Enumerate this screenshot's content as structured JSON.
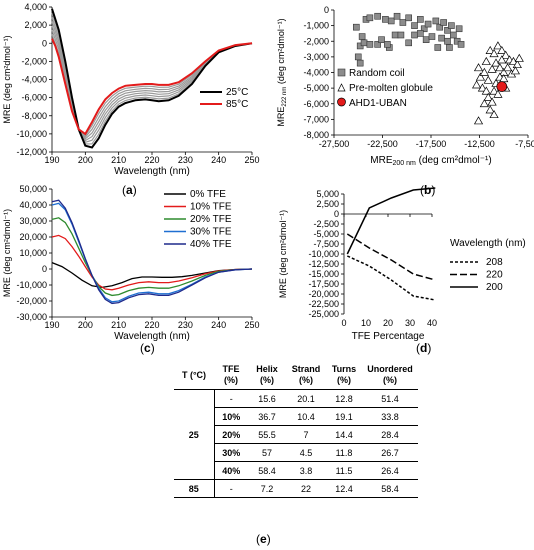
{
  "panels": {
    "a": {
      "letter": "a"
    },
    "b": {
      "letter": "b"
    },
    "c": {
      "letter": "c"
    },
    "d": {
      "letter": "d"
    },
    "e": {
      "letter": "e"
    }
  },
  "colors": {
    "black": "#000000",
    "red": "#e31b1b",
    "green": "#2e8b2e",
    "blue": "#1f6fd1",
    "navy": "#1f2a8c",
    "gray": "#9a9a9a"
  },
  "chart_data": [
    {
      "id": "a",
      "type": "line",
      "xlabel": "Wavelength (nm)",
      "ylabel": "MRE (deg cm²dmol⁻¹)",
      "xlim": [
        190,
        250
      ],
      "ylim": [
        -12000,
        4000
      ],
      "xticks": [
        190,
        200,
        210,
        220,
        230,
        240,
        250
      ],
      "xtick_labels": [
        "190",
        "200",
        "210",
        "220",
        "230",
        "240",
        "250"
      ],
      "yticks": [
        4000,
        2000,
        0,
        -2000,
        -4000,
        -6000,
        -8000,
        -10000,
        -12000
      ],
      "ytick_labels": [
        "4,000",
        "2,000",
        "0",
        "-2,000",
        "-4,000",
        "-6,000",
        "-8,000",
        "-10,000",
        "-12,000"
      ],
      "legend": "right",
      "series": [
        {
          "name": "25°C",
          "color": "#000000",
          "x": [
            190,
            192,
            194,
            196,
            198,
            200,
            202,
            204,
            206,
            208,
            210,
            212,
            215,
            218,
            220,
            222,
            225,
            228,
            232,
            236,
            240,
            245,
            250
          ],
          "y": [
            3800,
            1500,
            -2000,
            -6000,
            -9500,
            -11300,
            -11500,
            -10500,
            -9000,
            -7800,
            -7000,
            -6600,
            -6300,
            -6200,
            -6300,
            -6400,
            -6300,
            -5800,
            -4500,
            -2500,
            -1000,
            -300,
            0
          ]
        },
        {
          "name": "85°C",
          "color": "#e31b1b",
          "x": [
            190,
            191,
            192,
            194,
            196,
            198,
            200,
            202,
            204,
            206,
            208,
            210,
            212,
            215,
            218,
            220,
            222,
            225,
            228,
            232,
            236,
            240,
            245,
            250
          ],
          "y": [
            500,
            -300,
            -1500,
            -4500,
            -7500,
            -9500,
            -10000,
            -8700,
            -7300,
            -6200,
            -5500,
            -5000,
            -4700,
            -4600,
            -4500,
            -4500,
            -4600,
            -4600,
            -4300,
            -3300,
            -2000,
            -800,
            -200,
            0
          ]
        }
      ]
    },
    {
      "id": "b",
      "type": "scatter",
      "xlabel": "MRE200 nm (deg cm²dmol⁻¹)",
      "ylabel": "MRE222 nm (deg cm²dmol⁻¹)",
      "xlim": [
        -27500,
        -7500
      ],
      "ylim": [
        -8000,
        0
      ],
      "xticks": [
        -27500,
        -22500,
        -17500,
        -12500,
        -7500
      ],
      "xtick_labels": [
        "-27,500",
        "-22,500",
        "-17,500",
        "-12,500",
        "-7,500"
      ],
      "yticks": [
        0,
        -1000,
        -2000,
        -3000,
        -4000,
        -5000,
        -6000,
        -7000,
        -8000
      ],
      "ytick_labels": [
        "0",
        "-1,000",
        "-2,000",
        "-3,000",
        "-4,000",
        "-5,000",
        "-6,000",
        "-7,000",
        "-8,000"
      ],
      "legend": "bottom-left",
      "series": [
        {
          "name": "Random coil",
          "marker": "square",
          "points": [
            [
              -25200,
              -1100
            ],
            [
              -24200,
              -600
            ],
            [
              -23800,
              -500
            ],
            [
              -23000,
              -400
            ],
            [
              -22200,
              -600
            ],
            [
              -21600,
              -700
            ],
            [
              -21000,
              -400
            ],
            [
              -20400,
              -800
            ],
            [
              -19800,
              -500
            ],
            [
              -19200,
              -1000
            ],
            [
              -18600,
              -600
            ],
            [
              -18200,
              -1200
            ],
            [
              -17800,
              -900
            ],
            [
              -17000,
              -700
            ],
            [
              -16600,
              -1100
            ],
            [
              -16200,
              -800
            ],
            [
              -15800,
              -1300
            ],
            [
              -15400,
              -1000
            ],
            [
              -15200,
              -1600
            ],
            [
              -14800,
              -2000
            ],
            [
              -14600,
              -1200
            ],
            [
              -14400,
              -2200
            ],
            [
              -24800,
              -2300
            ],
            [
              -24600,
              -1700
            ],
            [
              -24400,
              -2100
            ],
            [
              -23800,
              -2200
            ],
            [
              -23000,
              -2200
            ],
            [
              -22600,
              -1900
            ],
            [
              -21800,
              -2400
            ],
            [
              -21200,
              -1600
            ],
            [
              -20600,
              -1600
            ],
            [
              -19800,
              -2100
            ],
            [
              -19200,
              -1600
            ],
            [
              -18600,
              -1500
            ],
            [
              -18000,
              -1900
            ],
            [
              -17400,
              -1700
            ],
            [
              -16800,
              -2400
            ],
            [
              -16400,
              -1800
            ],
            [
              -15800,
              -2000
            ],
            [
              -15600,
              -2400
            ],
            [
              -25000,
              -3000
            ],
            [
              -24800,
              -3400
            ],
            [
              -22000,
              -2200
            ]
          ]
        },
        {
          "name": "Pre-molten globule",
          "marker": "triangle",
          "points": [
            [
              -11800,
              -3300
            ],
            [
              -11400,
              -2600
            ],
            [
              -11000,
              -2800
            ],
            [
              -10600,
              -2300
            ],
            [
              -10200,
              -2600
            ],
            [
              -9800,
              -2900
            ],
            [
              -9400,
              -3200
            ],
            [
              -9000,
              -3300
            ],
            [
              -8600,
              -3500
            ],
            [
              -8400,
              -3100
            ],
            [
              -12600,
              -3700
            ],
            [
              -12400,
              -4300
            ],
            [
              -12000,
              -4000
            ],
            [
              -11600,
              -4500
            ],
            [
              -11200,
              -3800
            ],
            [
              -10800,
              -3400
            ],
            [
              -10400,
              -3700
            ],
            [
              -10000,
              -4000
            ],
            [
              -9600,
              -3700
            ],
            [
              -9200,
              -4100
            ],
            [
              -8800,
              -3900
            ],
            [
              -12200,
              -5000
            ],
            [
              -11800,
              -5200
            ],
            [
              -11600,
              -5600
            ],
            [
              -11200,
              -5900
            ],
            [
              -11000,
              -5200
            ],
            [
              -10800,
              -4700
            ],
            [
              -10400,
              -4300
            ],
            [
              -10000,
              -4400
            ],
            [
              -10600,
              -5400
            ],
            [
              -12000,
              -6000
            ],
            [
              -11400,
              -6400
            ],
            [
              -11000,
              -6700
            ],
            [
              -12600,
              -7100
            ],
            [
              -12800,
              -4800
            ],
            [
              -9800,
              -5000
            ],
            [
              -10200,
              -3200
            ]
          ]
        },
        {
          "name": "AHD1-UBAN",
          "marker": "circle",
          "color": "#e31b1b",
          "points": [
            [
              -10200,
              -4900
            ]
          ]
        }
      ]
    },
    {
      "id": "c",
      "type": "line",
      "xlabel": "Wavelength (nm)",
      "ylabel": "MRE (deg cm²dmol⁻¹)",
      "xlim": [
        190,
        250
      ],
      "ylim": [
        -30000,
        50000
      ],
      "xticks": [
        190,
        200,
        210,
        220,
        230,
        240,
        250
      ],
      "xtick_labels": [
        "190",
        "200",
        "210",
        "220",
        "230",
        "240",
        "250"
      ],
      "yticks": [
        50000,
        40000,
        30000,
        20000,
        10000,
        0,
        -10000,
        -20000,
        -30000
      ],
      "ytick_labels": [
        "50,000",
        "40,000",
        "30,000",
        "20,000",
        "10,000",
        "0",
        "-10,000",
        "-20,000",
        "-30,000"
      ],
      "legend": "right",
      "series": [
        {
          "name": "0% TFE",
          "color": "#000000",
          "x": [
            190,
            193,
            196,
            199,
            202,
            205,
            208,
            211,
            214,
            217,
            220,
            223,
            226,
            229,
            232,
            236,
            240,
            245,
            250
          ],
          "y": [
            4000,
            1500,
            -2500,
            -7000,
            -10500,
            -11500,
            -10500,
            -8500,
            -6000,
            -5000,
            -5000,
            -5200,
            -5200,
            -4800,
            -4000,
            -2500,
            -1000,
            -300,
            0
          ]
        },
        {
          "name": "10% TFE",
          "color": "#e31b1b",
          "x": [
            190,
            192,
            194,
            196,
            198,
            200,
            202,
            204,
            206,
            208,
            210,
            213,
            216,
            219,
            222,
            225,
            228,
            232,
            236,
            240,
            245,
            250
          ],
          "y": [
            20000,
            21000,
            19000,
            14000,
            8000,
            1500,
            -5000,
            -10000,
            -12500,
            -13000,
            -12000,
            -10000,
            -8500,
            -8000,
            -8500,
            -8500,
            -7500,
            -5500,
            -3000,
            -1200,
            -300,
            0
          ]
        },
        {
          "name": "20% TFE",
          "color": "#2e8b2e",
          "x": [
            190,
            192,
            194,
            196,
            198,
            200,
            202,
            204,
            206,
            208,
            210,
            213,
            216,
            219,
            222,
            225,
            228,
            232,
            236,
            240,
            245,
            250
          ],
          "y": [
            31000,
            32000,
            29000,
            22000,
            13000,
            4000,
            -4000,
            -11000,
            -15000,
            -16500,
            -16000,
            -13500,
            -12000,
            -11500,
            -12000,
            -12000,
            -10500,
            -7500,
            -4000,
            -1500,
            -400,
            0
          ]
        },
        {
          "name": "30% TFE",
          "color": "#1f6fd1",
          "x": [
            190,
            192,
            194,
            196,
            198,
            200,
            202,
            204,
            206,
            208,
            210,
            213,
            216,
            219,
            222,
            225,
            228,
            232,
            236,
            240,
            245,
            250
          ],
          "y": [
            40000,
            41000,
            37000,
            28000,
            17000,
            6000,
            -4000,
            -12000,
            -18000,
            -20500,
            -20000,
            -17000,
            -15000,
            -14500,
            -15500,
            -15500,
            -13500,
            -9500,
            -5000,
            -2000,
            -500,
            0
          ]
        },
        {
          "name": "40% TFE",
          "color": "#1f2a8c",
          "x": [
            190,
            192,
            194,
            196,
            198,
            200,
            202,
            204,
            206,
            208,
            210,
            213,
            216,
            219,
            222,
            225,
            228,
            232,
            236,
            240,
            245,
            250
          ],
          "y": [
            42000,
            43000,
            38000,
            29000,
            18000,
            6500,
            -4000,
            -13000,
            -19000,
            -21500,
            -21000,
            -18000,
            -16000,
            -15500,
            -16500,
            -16500,
            -14500,
            -10000,
            -5500,
            -2000,
            -500,
            0
          ]
        }
      ]
    },
    {
      "id": "d",
      "type": "line",
      "xlabel": "TFE Percentage",
      "ylabel": "MRE (deg cm²dmol⁻¹)",
      "xlim": [
        0,
        40
      ],
      "ylim": [
        -25000,
        5000
      ],
      "xticks": [
        0,
        10,
        20,
        30,
        40
      ],
      "xtick_labels": [
        "0",
        "10",
        "20",
        "30",
        "40"
      ],
      "yticks": [
        5000,
        2500,
        0,
        -2500,
        -5000,
        -7500,
        -10000,
        -12500,
        -15000,
        -17500,
        -20000,
        -22500,
        -25000
      ],
      "ytick_labels": [
        "5,000",
        "2,500",
        "0",
        "-2,500",
        "-5,000",
        "-7,500",
        "-10,000",
        "-12,500",
        "-15,000",
        "-17,500",
        "-20,000",
        "-22,500",
        "-25,000"
      ],
      "legend_title": "Wavelength (nm)",
      "legend": "right",
      "series": [
        {
          "name": "208",
          "dash": "short",
          "x": [
            0,
            10,
            20,
            30,
            40
          ],
          "y": [
            -10500,
            -13000,
            -16500,
            -20500,
            -21500
          ]
        },
        {
          "name": "220",
          "dash": "long",
          "x": [
            0,
            10,
            20,
            30,
            40
          ],
          "y": [
            -5000,
            -8500,
            -11500,
            -15000,
            -16500
          ]
        },
        {
          "name": "200",
          "dash": "solid",
          "x": [
            0,
            10,
            20,
            30,
            40
          ],
          "y": [
            -10000,
            1500,
            4000,
            6000,
            6500
          ]
        }
      ]
    }
  ],
  "table": {
    "headers": [
      "T (°C)",
      "TFE (%)",
      "Helix (%)",
      "Strand (%)",
      "Turns (%)",
      "Unordered (%)"
    ],
    "groups": [
      {
        "temp": "25",
        "rows": [
          [
            "-",
            "15.6",
            "20.1",
            "12.8",
            "51.4"
          ],
          [
            "10%",
            "36.7",
            "10.4",
            "19.1",
            "33.8"
          ],
          [
            "20%",
            "55.5",
            "7",
            "14.4",
            "28.4"
          ],
          [
            "30%",
            "57",
            "4.5",
            "11.8",
            "26.7"
          ],
          [
            "40%",
            "58.4",
            "3.8",
            "11.5",
            "26.4"
          ]
        ]
      },
      {
        "temp": "85",
        "rows": [
          [
            "-",
            "7.2",
            "22",
            "12.4",
            "58.4"
          ]
        ]
      }
    ]
  }
}
